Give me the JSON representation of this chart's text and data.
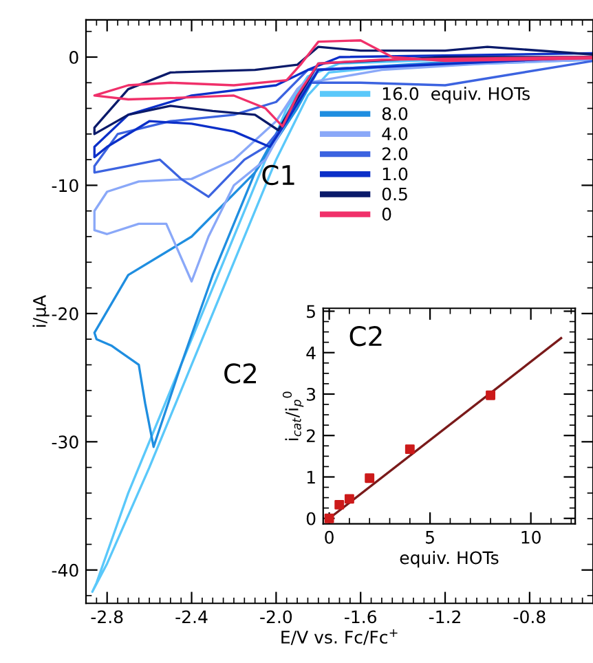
{
  "chart_data": [
    {
      "type": "line",
      "xlabel": "E/V vs. Fc/Fc$^{+}$",
      "ylabel": "i/μA",
      "xlim": [
        -2.9,
        -0.5
      ],
      "ylim": [
        -42.6,
        2.9
      ],
      "xticks": [
        -2.8,
        -2.4,
        {
          "value": -2.0,
          "label": "-2.0"
        },
        -1.6,
        -1.2,
        -0.8
      ],
      "yticks": [
        -40,
        -30,
        -20,
        -10,
        0
      ],
      "grid": false,
      "legend": "right",
      "marker": "none",
      "line_style": "solid",
      "annotations": [
        "C1",
        "C2"
      ],
      "series": [
        {
          "name": "16.0  equiv. HOTs",
          "color": "#5ac8fa",
          "x": [
            -0.5,
            -1.0,
            -1.5,
            -1.75,
            -1.85,
            -2.0,
            -2.2,
            -2.4,
            -2.6,
            -2.8,
            -2.87,
            -2.85,
            -2.7,
            -2.5,
            -2.3,
            -2.1,
            -1.95,
            -1.85,
            -1.7,
            -1.2,
            -0.5
          ],
          "values": [
            -0.2,
            -0.5,
            -0.8,
            -1.2,
            -3,
            -8,
            -16,
            -24,
            -32,
            -39.5,
            -41.7,
            -41,
            -34,
            -26,
            -18,
            -10,
            -4,
            -1.5,
            -0.5,
            -0.2,
            0
          ]
        },
        {
          "name": "8.0",
          "color": "#1f8ee0",
          "x": [
            -0.5,
            -1.2,
            -1.8,
            -1.9,
            -2.1,
            -2.4,
            -2.7,
            -2.86,
            -2.85,
            -2.78,
            -2.65,
            -2.62,
            -2.58,
            -2.45,
            -2.3,
            -2.1,
            -1.9,
            -1.8,
            -1.2,
            -0.5
          ],
          "values": [
            0,
            -0.4,
            -1,
            -4,
            -9,
            -14,
            -17,
            -21.5,
            -22,
            -22.5,
            -24,
            -27,
            -30.4,
            -24,
            -17,
            -9,
            -3,
            -1,
            -0.5,
            -0.2
          ]
        },
        {
          "name": "4.0",
          "color": "#8aa8f8",
          "x": [
            -0.5,
            -1.5,
            -1.85,
            -1.95,
            -2.05,
            -2.2,
            -2.32,
            -2.4,
            -2.52,
            -2.65,
            -2.8,
            -2.86,
            -2.86,
            -2.8,
            -2.65,
            -2.4,
            -2.2,
            -2.0,
            -1.9,
            -1.8,
            -0.5
          ],
          "values": [
            0,
            -1,
            -2,
            -5,
            -8,
            -10,
            -14,
            -17.5,
            -13,
            -13,
            -13.8,
            -13.5,
            -12,
            -10.5,
            -9.7,
            -9.5,
            -8,
            -5,
            -2.5,
            -1,
            -0.2
          ]
        },
        {
          "name": "2.0",
          "color": "#3c63e0",
          "x": [
            -0.5,
            -1.2,
            -1.6,
            -1.85,
            -1.95,
            -2.05,
            -2.15,
            -2.32,
            -2.45,
            -2.55,
            -2.7,
            -2.86,
            -2.86,
            -2.75,
            -2.5,
            -2.2,
            -2.0,
            -1.85,
            -1.2,
            -0.5
          ],
          "values": [
            -0.3,
            -2.2,
            -2.0,
            -2,
            -5,
            -7,
            -8,
            -10.9,
            -9.5,
            -8,
            -8.5,
            -9,
            -8.5,
            -6,
            -5,
            -4.5,
            -3.5,
            -1,
            -0.5,
            0
          ]
        },
        {
          "name": "1.0",
          "color": "#0b2fc8",
          "x": [
            -0.5,
            -1.8,
            -1.95,
            -2.03,
            -2.2,
            -2.4,
            -2.6,
            -2.8,
            -2.86,
            -2.86,
            -2.7,
            -2.4,
            -2.0,
            -1.85,
            -1.7,
            -0.5
          ],
          "values": [
            0,
            -1,
            -5,
            -7,
            -5.8,
            -5.2,
            -5,
            -7,
            -7.8,
            -7,
            -4.5,
            -3,
            -2.2,
            -1,
            0,
            0.3
          ]
        },
        {
          "name": "0.5",
          "color": "#0a1a6a",
          "x": [
            -0.5,
            -1.2,
            -1.8,
            -1.99,
            -2.1,
            -2.3,
            -2.5,
            -2.7,
            -2.86,
            -2.86,
            -2.7,
            -2.5,
            -2.1,
            -1.9,
            -1.8,
            -1.6,
            -1.2,
            -1.0,
            -0.5
          ],
          "values": [
            0,
            0,
            -0.5,
            -5.7,
            -4.5,
            -4.2,
            -3.8,
            -4.5,
            -6,
            -5.5,
            -2.5,
            -1.2,
            -1,
            -0.6,
            0.8,
            0.5,
            0.5,
            0.8,
            0.2
          ]
        },
        {
          "name": "0",
          "color": "#f0306a",
          "x": [
            -0.5,
            -1.5,
            -1.8,
            -1.9,
            -1.97,
            -2.05,
            -2.2,
            -2.5,
            -2.7,
            -2.86,
            -2.86,
            -2.7,
            -2.5,
            -2.2,
            -1.95,
            -1.88,
            -1.8,
            -1.6,
            -1.45,
            -1.2,
            -0.5
          ],
          "values": [
            0,
            -0.2,
            -0.5,
            -3,
            -5.4,
            -4,
            -3,
            -3.2,
            -3.3,
            -3,
            -3,
            -2.2,
            -2,
            -2.2,
            -1.8,
            -0.5,
            1.2,
            1.3,
            0,
            -0.3,
            -0.1
          ]
        }
      ]
    },
    {
      "type": "scatter",
      "xlabel": "equiv. HOTs",
      "ylabel": "i$_{cat}$/i$_{p}$$^{0}$",
      "xlim": [
        -0.3,
        12.2
      ],
      "ylim": [
        -0.13,
        5.07
      ],
      "xticks": [
        0,
        5,
        10
      ],
      "yticks": [
        0,
        1,
        2,
        3,
        4,
        5
      ],
      "grid": false,
      "annotations": [
        "C2"
      ],
      "series": [
        {
          "marker": "square",
          "color": "#cc1a1a",
          "x": [
            0,
            0.5,
            1,
            2,
            4,
            8
          ],
          "values": [
            0,
            0.33,
            0.47,
            0.97,
            1.67,
            2.97
          ]
        },
        {
          "type": "line",
          "color": "#7a1a1a",
          "x": [
            0,
            11.5
          ],
          "values": [
            0,
            4.35
          ]
        }
      ]
    }
  ]
}
